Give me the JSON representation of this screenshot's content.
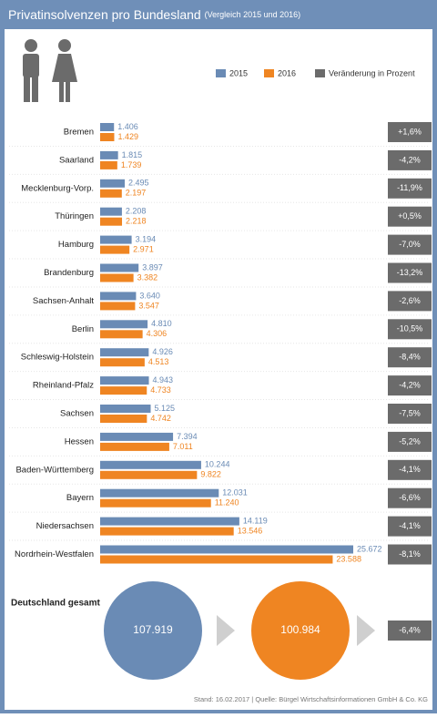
{
  "chart_data": {
    "type": "bar",
    "title": "Privatinsolvenzen pro Bundesland",
    "subtitle": "(Vergleich 2015 und 2016)",
    "categories": [
      "Bremen",
      "Saarland",
      "Mecklenburg-Vorp.",
      "Thüringen",
      "Hamburg",
      "Brandenburg",
      "Sachsen-Anhalt",
      "Berlin",
      "Schleswig-Holstein",
      "Rheinland-Pfalz",
      "Sachsen",
      "Hessen",
      "Baden-Württemberg",
      "Bayern",
      "Niedersachsen",
      "Nordrhein-Westfalen"
    ],
    "series": [
      {
        "name": "2015",
        "color": "#6a8bb5",
        "values": [
          1406,
          1815,
          2495,
          2208,
          3194,
          3897,
          3640,
          4810,
          4926,
          4943,
          5125,
          7394,
          10244,
          12031,
          14119,
          25672
        ],
        "value_labels": [
          "1.406",
          "1.815",
          "2.495",
          "2.208",
          "3.194",
          "3.897",
          "3.640",
          "4.810",
          "4.926",
          "4.943",
          "5.125",
          "7.394",
          "10.244",
          "12.031",
          "14.119",
          "25.672"
        ]
      },
      {
        "name": "2016",
        "color": "#ef8522",
        "values": [
          1429,
          1739,
          2197,
          2218,
          2971,
          3382,
          3547,
          4306,
          4513,
          4733,
          4742,
          7011,
          9822,
          11240,
          13546,
          23588
        ],
        "value_labels": [
          "1.429",
          "1.739",
          "2.197",
          "2.218",
          "2.971",
          "3.382",
          "3.547",
          "4.306",
          "4.513",
          "4.733",
          "4.742",
          "7.011",
          "9.822",
          "11.240",
          "13.546",
          "23.588"
        ]
      },
      {
        "name": "Veränderung in Prozent",
        "color": "#6b6b6b",
        "values": [
          1.6,
          -4.2,
          -11.9,
          0.5,
          -7.0,
          -13.2,
          -2.6,
          -10.5,
          -8.4,
          -4.2,
          -7.5,
          -5.2,
          -4.1,
          -6.6,
          -4.1,
          -8.1
        ],
        "value_labels": [
          "+1,6%",
          "-4,2%",
          "-11,9%",
          "+0,5%",
          "-7,0%",
          "-13,2%",
          "-2,6%",
          "-10,5%",
          "-8,4%",
          "-4,2%",
          "-7,5%",
          "-5,2%",
          "-4,1%",
          "-6,6%",
          "-4,1%",
          "-8,1%"
        ]
      }
    ],
    "total": {
      "label": "Deutschland gesamt",
      "values": [
        107919,
        100984
      ],
      "value_labels": [
        "107.919",
        "100.984"
      ],
      "change": -6.4,
      "change_label": "-6,4%"
    },
    "source": "Stand: 16.02.2017 | Quelle: Bürgel Wirtschaftsinformationen GmbH & Co. KG"
  }
}
